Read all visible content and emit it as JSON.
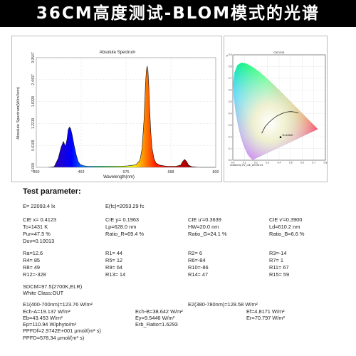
{
  "banner": "36CM高度测试-BLOM模式的光谱",
  "chart_data": [
    {
      "type": "line",
      "title": "Absolute Spectrum",
      "xlabel": "Wavelength(nm)",
      "ylabel": "Absolute Spectrum(W/m²/nm)",
      "xlim": [
        350,
        800
      ],
      "ylim": [
        0,
        3.0547
      ],
      "x_ticks": [
        "350",
        "463",
        "575",
        "688",
        "800"
      ],
      "y_ticks": [
        "0.000",
        "0.6109",
        "1.2219",
        "1.8328",
        "2.4437",
        "3.0547"
      ],
      "grid": true,
      "x": [
        380,
        395,
        405,
        412,
        418,
        423,
        427,
        430,
        433,
        436,
        440,
        445,
        450,
        455,
        460,
        470,
        480,
        490,
        500,
        520,
        540,
        560,
        580,
        600,
        610,
        615,
        620,
        624,
        626,
        628,
        630,
        632,
        634,
        637,
        640,
        645,
        650,
        660,
        670,
        680,
        690,
        700,
        712,
        717,
        722,
        727,
        732,
        740,
        760,
        780,
        800
      ],
      "values": [
        0.0,
        0.02,
        0.25,
        0.55,
        0.72,
        0.58,
        0.78,
        1.05,
        1.12,
        1.08,
        0.9,
        0.6,
        0.35,
        0.16,
        0.08,
        0.04,
        0.03,
        0.03,
        0.03,
        0.03,
        0.03,
        0.03,
        0.04,
        0.07,
        0.2,
        0.5,
        1.3,
        2.35,
        2.7,
        2.82,
        2.7,
        2.3,
        1.7,
        1.0,
        0.55,
        0.25,
        0.12,
        0.06,
        0.04,
        0.03,
        0.03,
        0.03,
        0.06,
        0.16,
        0.22,
        0.16,
        0.06,
        0.02,
        0.0,
        0.0,
        0.0
      ]
    },
    {
      "type": "scatter",
      "title": "CIE1931",
      "xlabel": "Created by HV_CIE_WV.Ver1.5",
      "ylabel": "y",
      "xlim": [
        0,
        0.8
      ],
      "ylim": [
        0,
        0.9
      ],
      "x_ticks": [
        "0.0",
        "0.1",
        "0.2",
        "0.3",
        "0.4",
        "0.5",
        "0.6",
        "0.7",
        "0.8"
      ],
      "y_ticks": [
        "0.0",
        "0.1",
        "0.2",
        "0.3",
        "0.4",
        "0.5",
        "0.6",
        "0.7",
        "0.8",
        "0.9"
      ],
      "x": [
        0.4123
      ],
      "values": [
        0.1963
      ],
      "point_label": "Tc=1431K"
    }
  ],
  "test_title": "Test parameter:",
  "params": {
    "e": "E=  22093.4 lx",
    "efc": "E(fc)=2053.29 fc",
    "cie_x": "CIE x= 0.4123",
    "cie_y": "CIE y= 0.1963",
    "cie_u": "CIE u'=0.3639",
    "cie_v": "CIE v'=0.3900",
    "tc": "Tc=1431 K",
    "lp": "Lp=628.0 nm",
    "hw": "HW=20.0 nm",
    "ld": "Ld=610.2 nm",
    "pur": "Pur=47.5 %",
    "ratio_r": "Ratio_R=69.4 %",
    "ratio_g": "Ratio_G=24.1 %",
    "ratio_b": "Ratio_B=6.6 %",
    "duv": "Duv=0.10013",
    "ra": "Ra=12.6",
    "r1": "R1= 44",
    "r2": "R2=  6",
    "r3": "R3=-14",
    "r4": "R4= 85",
    "r5": "R5= 12",
    "r6": "R6=-84",
    "r7": "R7=  1",
    "r8": "R8= 49",
    "r9": "R9= 64",
    "r10": "R10=-86",
    "r11": "R11= 67",
    "r12": "R12=-328",
    "r13": "R13= 14",
    "r14": "R14= 47",
    "r15": "R15= 59",
    "sdcm": "SDCM=97.5(2700K,ELR)",
    "white_class": "White Class:OUT",
    "e1": "E1(400-700nm)=123.76 W/m²",
    "e2": "E2(380-780nm)=128.58 W/m²",
    "ech_a": "Ech-A=19.137 W/m²",
    "ech_b": "Ech-B=38.642 W/m²",
    "ef": "Ef=4.8171 W/m²",
    "eb": "Eb=43.453 W/m²",
    "ey": "Ey=9.5446 W/m²",
    "er": "Er=70.797 W/m²",
    "ep": "Ep=110.94 W/phyto/m²",
    "erb": "Erb_Ratio=1.6293",
    "ppfdf": "PPFDf=2.9742E+001 μmol/(m² s)",
    "ppfd": "PPFD=578.34 μmol/(m² s)"
  }
}
